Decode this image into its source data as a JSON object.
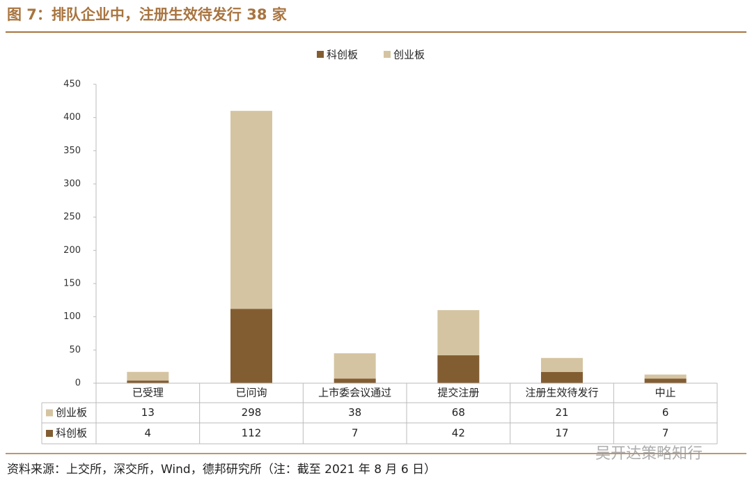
{
  "chart_data": {
    "type": "stacked-bar",
    "title": "图 7：排队企业中，注册生效待发行 38 家",
    "categories": [
      "已受理",
      "已问询",
      "上市委会议通过",
      "提交注册",
      "注册生效待发行",
      "中止"
    ],
    "series": [
      {
        "name": "科创板",
        "color": "#835d32",
        "values": [
          4,
          112,
          7,
          42,
          17,
          7
        ]
      },
      {
        "name": "创业板",
        "color": "#d5c4a1",
        "values": [
          13,
          298,
          38,
          68,
          21,
          6
        ]
      }
    ],
    "ylim": [
      0,
      450
    ],
    "yticks": [
      0,
      50,
      100,
      150,
      200,
      250,
      300,
      350,
      400,
      450
    ],
    "legend": "top",
    "source": "资料来源：上交所，深交所，Wind，德邦研究所（注：截至 2021 年 8 月 6 日）",
    "watermark": "吴开达策略知行"
  }
}
